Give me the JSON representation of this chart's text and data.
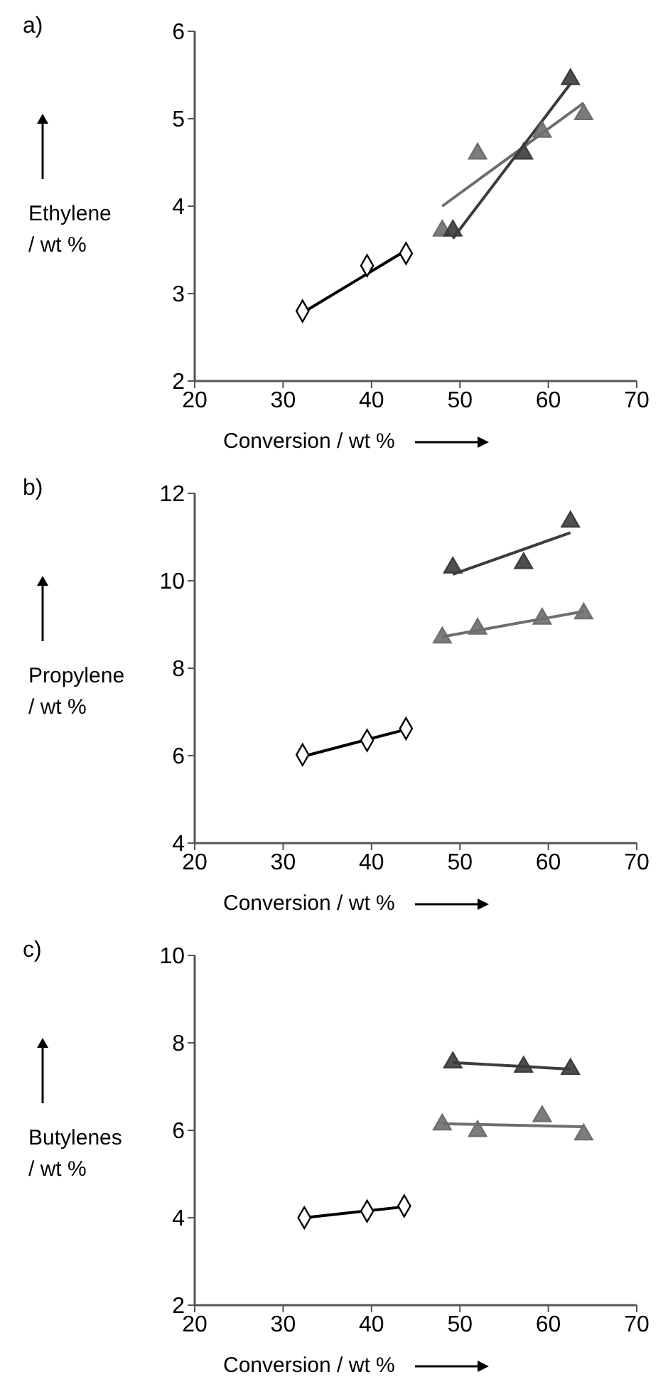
{
  "chart_data": [
    {
      "type": "scatter",
      "title": "a)",
      "xlabel": "Conversion / wt %",
      "ylabel": "Ethylene / wt %",
      "xlim": [
        20,
        70
      ],
      "xticks": [
        20,
        30,
        40,
        50,
        60,
        70
      ],
      "ylim": [
        2,
        6
      ],
      "yticks": [
        2,
        3,
        4,
        5,
        6
      ],
      "grid": false,
      "legend": false,
      "series": [
        {
          "marker": "diamond",
          "color": "#000000",
          "x": [
            32.2,
            39.5,
            43.9
          ],
          "values": [
            2.8,
            3.32,
            3.46
          ]
        },
        {
          "type": "line",
          "marker": "none",
          "color": "#000000",
          "x": [
            32.2,
            44
          ],
          "values": [
            2.78,
            3.5
          ]
        },
        {
          "marker": "triangle",
          "color": "#6e6e6e",
          "x": [
            48,
            52,
            59.3,
            64
          ],
          "values": [
            3.72,
            4.6,
            4.85,
            5.05
          ]
        },
        {
          "type": "line",
          "marker": "none",
          "color": "#6e6e6e",
          "x": [
            48,
            64
          ],
          "values": [
            4.0,
            5.18
          ]
        },
        {
          "marker": "triangle",
          "color": "#3c3c3c",
          "x": [
            49.2,
            57.2,
            62.5
          ],
          "values": [
            3.72,
            4.6,
            5.45
          ]
        },
        {
          "type": "line",
          "marker": "none",
          "color": "#3c3c3c",
          "x": [
            49.2,
            62.5
          ],
          "values": [
            3.63,
            5.4
          ]
        }
      ]
    },
    {
      "type": "scatter",
      "title": "b)",
      "xlabel": "Conversion / wt %",
      "ylabel": "Propylene / wt %",
      "xlim": [
        20,
        70
      ],
      "xticks": [
        20,
        30,
        40,
        50,
        60,
        70
      ],
      "ylim": [
        4,
        12
      ],
      "yticks": [
        4,
        6,
        8,
        10,
        12
      ],
      "grid": false,
      "legend": false,
      "series": [
        {
          "marker": "diamond",
          "color": "#000000",
          "x": [
            32.2,
            39.5,
            43.9
          ],
          "values": [
            6.02,
            6.35,
            6.62
          ]
        },
        {
          "type": "line",
          "marker": "none",
          "color": "#000000",
          "x": [
            32.2,
            43.9
          ],
          "values": [
            5.98,
            6.6
          ]
        },
        {
          "marker": "triangle",
          "color": "#6e6e6e",
          "x": [
            48,
            52,
            59.3,
            64
          ],
          "values": [
            8.7,
            8.9,
            9.13,
            9.25
          ]
        },
        {
          "type": "line",
          "marker": "none",
          "color": "#6e6e6e",
          "x": [
            48,
            64
          ],
          "values": [
            8.72,
            9.3
          ]
        },
        {
          "marker": "triangle",
          "color": "#3c3c3c",
          "x": [
            49.2,
            57.2,
            62.5
          ],
          "values": [
            10.3,
            10.4,
            11.35
          ]
        },
        {
          "type": "line",
          "marker": "none",
          "color": "#3c3c3c",
          "x": [
            49.2,
            62.5
          ],
          "values": [
            10.15,
            11.1
          ]
        }
      ]
    },
    {
      "type": "scatter",
      "title": "c)",
      "xlabel": "Conversion / wt %",
      "ylabel": "Butylenes / wt %",
      "xlim": [
        20,
        70
      ],
      "xticks": [
        20,
        30,
        40,
        50,
        60,
        70
      ],
      "ylim": [
        2,
        10
      ],
      "yticks": [
        2,
        4,
        6,
        8,
        10
      ],
      "grid": false,
      "legend": false,
      "series": [
        {
          "marker": "diamond",
          "color": "#000000",
          "x": [
            32.4,
            39.5,
            43.7
          ],
          "values": [
            4.0,
            4.15,
            4.27
          ]
        },
        {
          "type": "line",
          "marker": "none",
          "color": "#000000",
          "x": [
            32.4,
            43.7
          ],
          "values": [
            4.0,
            4.25
          ]
        },
        {
          "marker": "triangle",
          "color": "#6e6e6e",
          "x": [
            48,
            52,
            59.3,
            64
          ],
          "values": [
            6.13,
            5.98,
            6.32,
            5.9
          ]
        },
        {
          "type": "line",
          "marker": "none",
          "color": "#6e6e6e",
          "x": [
            48,
            64
          ],
          "values": [
            6.15,
            6.08
          ]
        },
        {
          "marker": "triangle",
          "color": "#3c3c3c",
          "x": [
            49.2,
            57.2,
            62.5
          ],
          "values": [
            7.55,
            7.45,
            7.4
          ]
        },
        {
          "type": "line",
          "marker": "none",
          "color": "#3c3c3c",
          "x": [
            49.2,
            62.5
          ],
          "values": [
            7.55,
            7.4
          ]
        }
      ]
    }
  ]
}
